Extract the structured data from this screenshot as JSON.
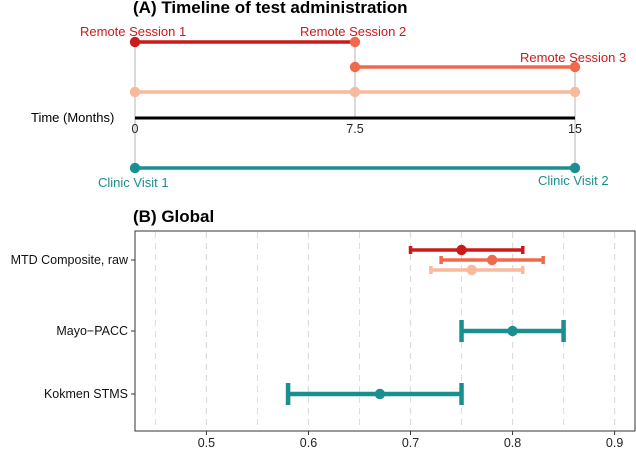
{
  "colors": {
    "session1": "#cc1a1a",
    "session2": "#f0694a",
    "session3": "#f8b99c",
    "clinic": "#1a8f8f",
    "black": "#000000",
    "gridline": "#dcdcdc",
    "connector": "#b5b5b5"
  },
  "panel_a": {
    "title": "(A) Timeline of test administration",
    "axis_label": "Time (Months)",
    "ticks": [
      "0",
      "7.5",
      "15"
    ],
    "tick_values": [
      0,
      7.5,
      15
    ],
    "remote_labels": {
      "session1": "Remote Session 1",
      "session2": "Remote Session 2",
      "session3": "Remote Session 3"
    },
    "clinic_labels": {
      "visit1": "Clinic Visit 1",
      "visit2": "Clinic Visit 2"
    },
    "segments": [
      {
        "color_key": "session1",
        "from": 0,
        "to": 7.5
      },
      {
        "color_key": "session2",
        "from": 7.5,
        "to": 15
      },
      {
        "color_key": "session3",
        "from": 0,
        "to": 15
      },
      {
        "color_key": "clinic",
        "from": 0,
        "to": 15
      }
    ]
  },
  "panel_b": {
    "title": "(B) Global"
  },
  "chart_data": {
    "type": "scatter",
    "title": "(B) Global",
    "xlabel": "",
    "ylabel": "",
    "xlim": [
      0.43,
      0.92
    ],
    "xticks": [
      0.5,
      0.6,
      0.7,
      0.8,
      0.9
    ],
    "xtick_labels": [
      "0.5",
      "0.6",
      "0.7",
      "0.8",
      "0.9"
    ],
    "categories": [
      "MTD Composite, raw",
      "Mayo−PACC",
      "Kokmen STMS"
    ],
    "points": [
      {
        "category": "MTD Composite, raw",
        "color_key": "session1",
        "estimate": 0.75,
        "low": 0.7,
        "high": 0.81
      },
      {
        "category": "MTD Composite, raw",
        "color_key": "session2",
        "estimate": 0.78,
        "low": 0.73,
        "high": 0.83
      },
      {
        "category": "MTD Composite, raw",
        "color_key": "session3",
        "estimate": 0.76,
        "low": 0.72,
        "high": 0.81
      },
      {
        "category": "Mayo−PACC",
        "color_key": "clinic",
        "estimate": 0.8,
        "low": 0.75,
        "high": 0.85
      },
      {
        "category": "Kokmen STMS",
        "color_key": "clinic",
        "estimate": 0.67,
        "low": 0.58,
        "high": 0.75
      }
    ],
    "grid": true
  }
}
